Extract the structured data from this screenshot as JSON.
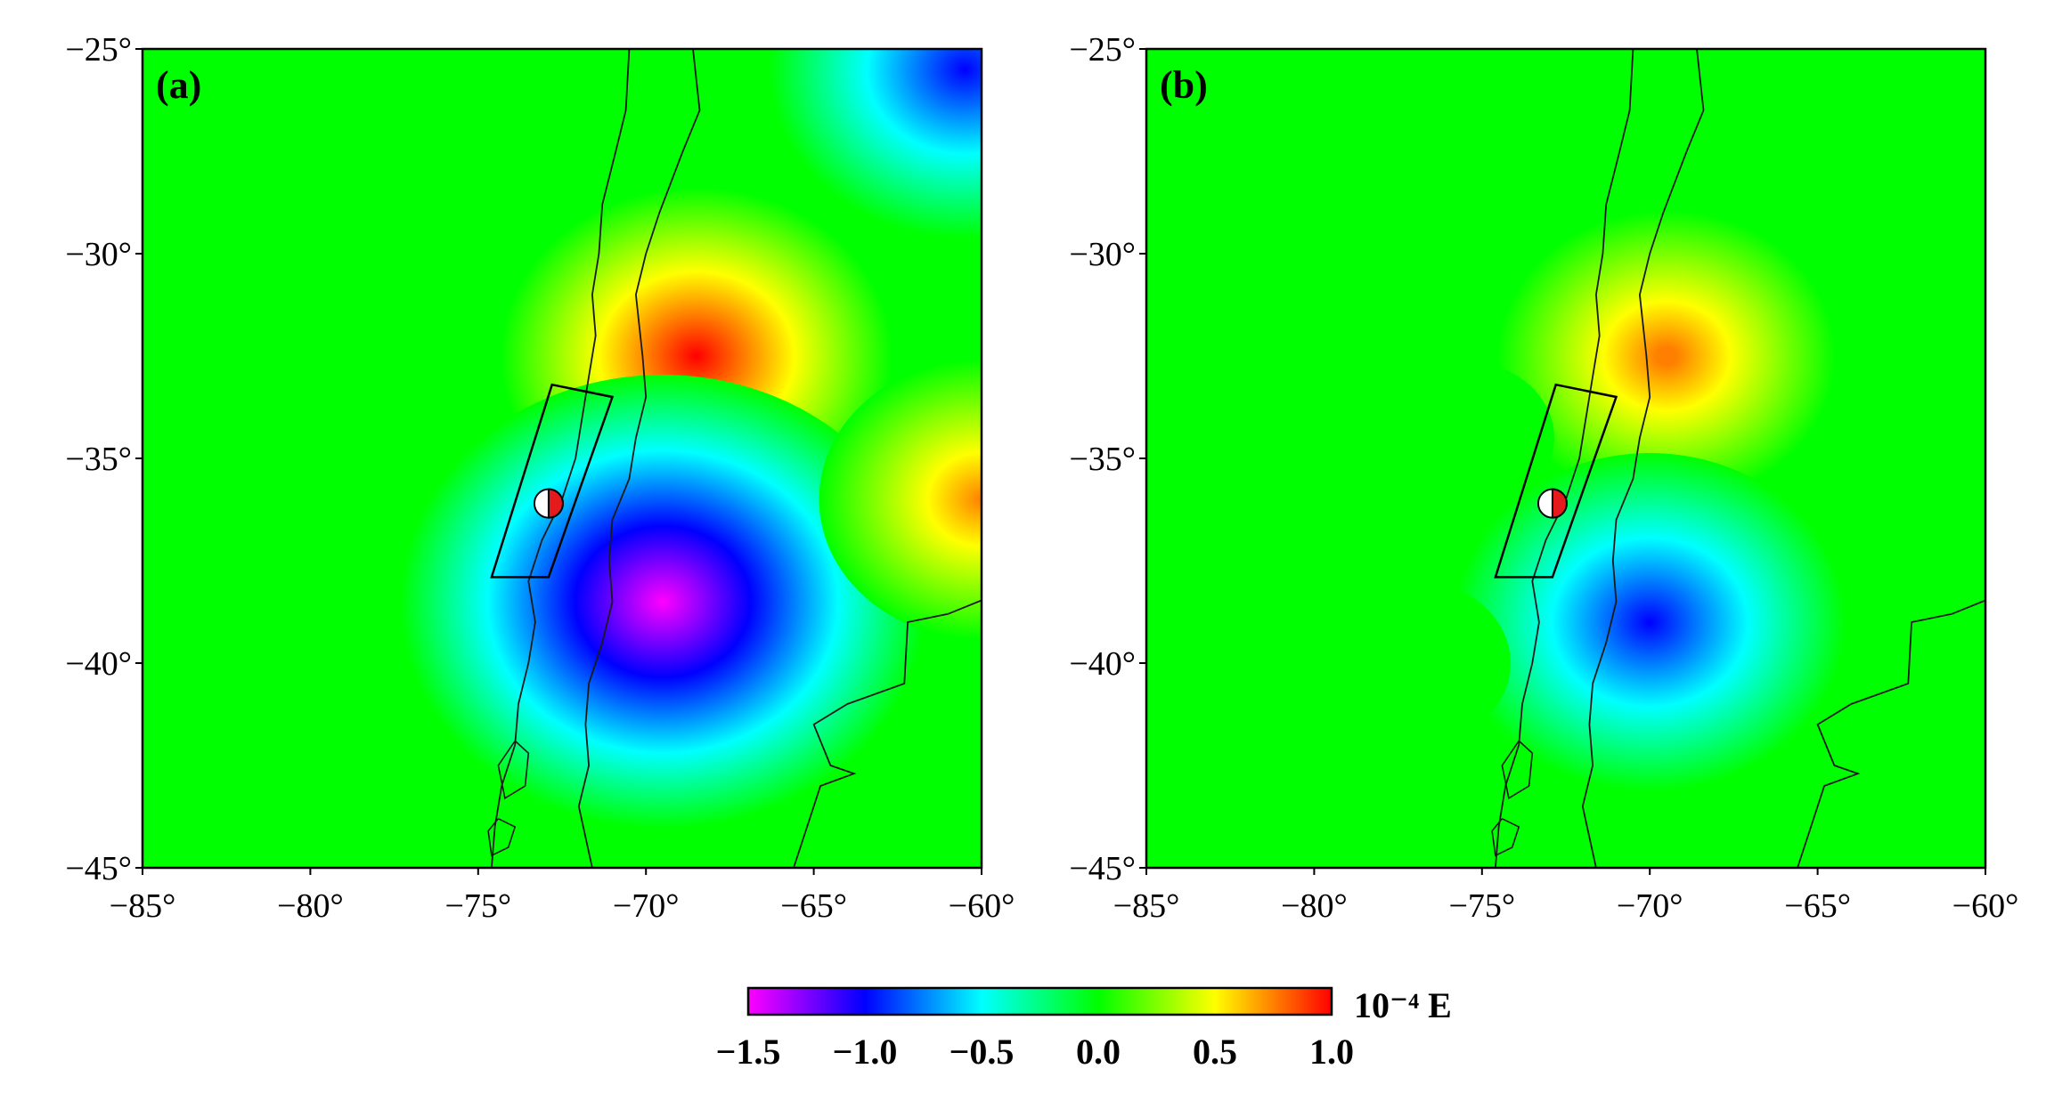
{
  "panels": [
    {
      "label": "(a)",
      "lon_range": [
        -85,
        -60
      ],
      "lat_range": [
        -45,
        -25
      ],
      "x_ticks": [
        "−85°",
        "−80°",
        "−75°",
        "−70°",
        "−65°",
        "−60°"
      ],
      "y_ticks": [
        "−25°",
        "−30°",
        "−35°",
        "−40°",
        "−45°"
      ],
      "anomalies": [
        {
          "lon": -68.5,
          "lat": -32.5,
          "value": 1.0
        },
        {
          "lon": -69.5,
          "lat": -38.5,
          "value": -1.5
        },
        {
          "lon": -60.0,
          "lat": -36.0,
          "value": 0.75
        },
        {
          "lon": -60.5,
          "lat": -25.5,
          "value": -1.0
        },
        {
          "lon": -79.0,
          "lat": -34.5,
          "value": -0.3
        },
        {
          "lon": -84.5,
          "lat": -34.0,
          "value": 0.2
        },
        {
          "lon": -80.0,
          "lat": -29.0,
          "value": 0.15
        }
      ]
    },
    {
      "label": "(b)",
      "lon_range": [
        -85,
        -60
      ],
      "lat_range": [
        -45,
        -25
      ],
      "x_ticks": [
        "−85°",
        "−80°",
        "−75°",
        "−70°",
        "−65°",
        "−60°"
      ],
      "y_ticks": [
        "−25°",
        "−30°",
        "−35°",
        "−40°",
        "−45°"
      ],
      "anomalies": [
        {
          "lon": -69.5,
          "lat": -32.5,
          "value": 0.8
        },
        {
          "lon": -70.0,
          "lat": -39.0,
          "value": -1.0
        },
        {
          "lon": -77.0,
          "lat": -40.0,
          "value": 0.25
        },
        {
          "lon": -75.5,
          "lat": -34.5,
          "value": -0.2
        }
      ]
    }
  ],
  "rupture_box_lonlat": [
    [
      -72.8,
      -33.2
    ],
    [
      -71.0,
      -33.5
    ],
    [
      -72.9,
      -37.9
    ],
    [
      -74.6,
      -37.9
    ]
  ],
  "epicenter": {
    "lon": -72.9,
    "lat": -36.1
  },
  "colorbar": {
    "unit": "10⁻⁴ E",
    "min": -1.5,
    "max": 1.0,
    "ticks": [
      "−1.5",
      "−1.0",
      "−0.5",
      "0.0",
      "0.5",
      "1.0"
    ],
    "stops": [
      {
        "value": -1.5,
        "color": "#ff00ff"
      },
      {
        "value": -1.25,
        "color": "#8000ff"
      },
      {
        "value": -1.0,
        "color": "#0000ff"
      },
      {
        "value": -0.5,
        "color": "#00ffff"
      },
      {
        "value": 0.0,
        "color": "#00ff00"
      },
      {
        "value": 0.5,
        "color": "#ffff00"
      },
      {
        "value": 0.75,
        "color": "#ff8000"
      },
      {
        "value": 1.0,
        "color": "#ff0000"
      }
    ]
  },
  "colors": {
    "coastline": "#1a1a1a",
    "frame": "#000000",
    "epicenter_compression": "#e41a1c"
  }
}
